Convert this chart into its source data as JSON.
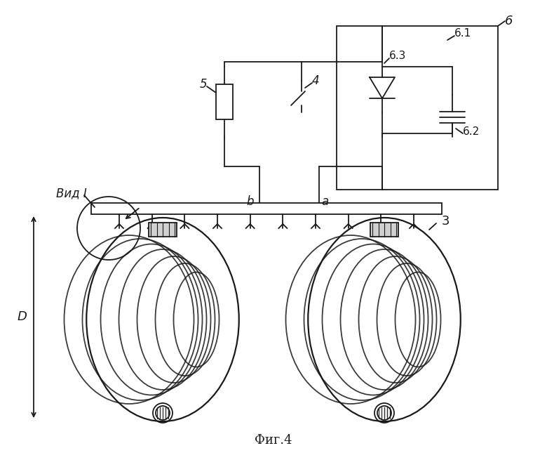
{
  "bg_color": "#ffffff",
  "line_color": "#1a1a1a",
  "hatch_color": "#555555",
  "fig_width": 7.8,
  "fig_height": 6.55,
  "title": "Фиг.4",
  "labels": {
    "b": "b",
    "a": "a",
    "D": "D",
    "vid": "Вид I",
    "3": "3",
    "4": "4",
    "5": "5",
    "6": "6",
    "6.1": "6.1",
    "6.2": "6.2",
    "6.3": "6.3"
  }
}
